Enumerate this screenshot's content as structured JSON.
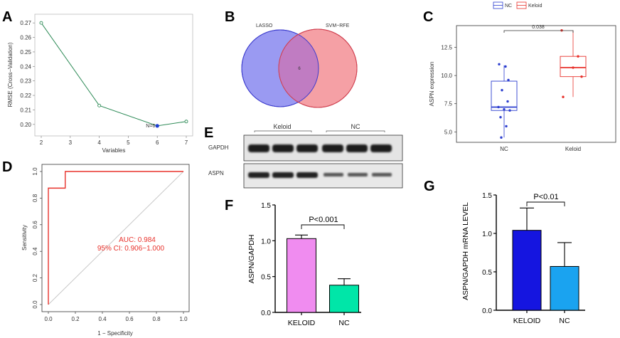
{
  "panels": [
    {
      "id": "A",
      "letter": "A"
    },
    {
      "id": "B",
      "letter": "B"
    },
    {
      "id": "C",
      "letter": "C"
    },
    {
      "id": "D",
      "letter": "D"
    },
    {
      "id": "E",
      "letter": "E"
    },
    {
      "id": "F",
      "letter": "F"
    },
    {
      "id": "G",
      "letter": "G"
    }
  ],
  "panel_a": {
    "xlabel": "Variables",
    "ylabel": "RMSE (Cross−Validation)",
    "annotation": "N=6",
    "colors": {
      "line": "#2e8b57",
      "highlight": "#1f3fd1",
      "annotation": "#e8322c"
    }
  },
  "panel_b": {
    "labels": {
      "left": "LASSO",
      "right": "SVM−RFE",
      "center": "6"
    },
    "colors": {
      "left": "#9a9af2",
      "right": "#f5a0a5",
      "overlap": "#c07cc2"
    }
  },
  "panel_c": {
    "legend": {
      "nc": "NC",
      "keloid": "Keloid"
    },
    "ylabel": "ASPN expression",
    "pvalue": "0.038",
    "colors": {
      "nc": "#2c3ecf",
      "keloid": "#e8322c"
    }
  },
  "panel_d": {
    "xlabel": "1 − Specificity",
    "ylabel": "Sensitivity",
    "auc_text": "AUC: 0.984",
    "ci_text": "95% CI: 0.906−1.000",
    "colors": {
      "curve": "#e8322c",
      "diagonal": "#c8c8c8"
    }
  },
  "panel_e": {
    "groups": [
      {
        "label": "Keloid"
      },
      {
        "label": "NC"
      }
    ],
    "rows": [
      {
        "label": "GAPDH"
      },
      {
        "label": "ASPN"
      }
    ]
  },
  "panel_f": {
    "pvalue": "P<0.001",
    "colors": {
      "keloid": "#f08cf0",
      "nc": "#00e6a8"
    }
  },
  "panel_g": {
    "pvalue": "P<0.01",
    "colors": {
      "keloid": "#1515e0",
      "nc": "#1aa3f0"
    }
  },
  "chart_data": [
    {
      "panel": "A",
      "type": "line",
      "x": [
        2,
        4,
        6,
        7
      ],
      "values": [
        0.27,
        0.213,
        0.199,
        0.202
      ],
      "title": "",
      "xlabel": "Variables",
      "ylabel": "RMSE (Cross−Validation)",
      "xlim": [
        2,
        7
      ],
      "ylim": [
        0.195,
        0.275
      ],
      "xticks": [
        2,
        3,
        4,
        5,
        6,
        7
      ],
      "yticks": [
        0.2,
        0.21,
        0.22,
        0.23,
        0.24,
        0.25,
        0.26,
        0.27
      ],
      "ytick_labels": [
        "0.20",
        "0.21",
        "0.22",
        "0.23",
        "0.24",
        "0.25",
        "0.26",
        "0.27"
      ],
      "highlight_x": 6
    },
    {
      "panel": "C",
      "type": "box",
      "categories": [
        "NC",
        "Keloid"
      ],
      "ylabel": "ASPN expression",
      "ylim": [
        4.2,
        14.3
      ],
      "yticks": [
        5.0,
        7.5,
        10.0,
        12.5
      ],
      "ytick_labels": [
        "5.0",
        "7.5",
        "10.0",
        "12.5"
      ],
      "series": [
        {
          "name": "NC",
          "min": 4.5,
          "q1": 6.9,
          "median": 7.2,
          "q3": 9.5,
          "max": 10.9,
          "points": [
            11.0,
            10.8,
            9.6,
            8.7,
            7.7,
            7.2,
            7.0,
            6.9,
            6.3,
            5.5,
            4.5
          ]
        },
        {
          "name": "Keloid",
          "min": 8.1,
          "q1": 9.9,
          "median": 10.7,
          "q3": 11.7,
          "max": 14.0,
          "points": [
            14.0,
            11.7,
            10.7,
            9.9,
            8.1
          ]
        }
      ]
    },
    {
      "panel": "D",
      "type": "line",
      "x": [
        0,
        0,
        0.125,
        0.125,
        1.0
      ],
      "values": [
        0,
        0.875,
        0.875,
        1.0,
        1.0
      ],
      "xlabel": "1 − Specificity",
      "ylabel": "Sensitivity",
      "xlim": [
        0,
        1
      ],
      "ylim": [
        0,
        1
      ],
      "xticks": [
        0.0,
        0.2,
        0.4,
        0.6,
        0.8,
        1.0
      ],
      "xtick_labels": [
        "0.0",
        "0.2",
        "0.4",
        "0.6",
        "0.8",
        "1.0"
      ],
      "yticks": [
        0.0,
        0.2,
        0.4,
        0.6,
        0.8,
        1.0
      ],
      "ytick_labels": [
        "0.0",
        "0.2",
        "0.4",
        "0.6",
        "0.8",
        "1.0"
      ]
    },
    {
      "panel": "F",
      "type": "bar",
      "categories": [
        "KELOID",
        "NC"
      ],
      "values": [
        1.03,
        0.38
      ],
      "errors": [
        0.05,
        0.09
      ],
      "ylabel": "ASPN/GAPDH",
      "ylim": [
        0,
        1.5
      ],
      "yticks": [
        0.0,
        0.5,
        1.0,
        1.5
      ],
      "ytick_labels": [
        "0.0",
        "0.5",
        "1.0",
        "1.5"
      ]
    },
    {
      "panel": "G",
      "type": "bar",
      "categories": [
        "KELOID",
        "NC"
      ],
      "values": [
        1.04,
        0.57
      ],
      "errors": [
        0.29,
        0.31
      ],
      "ylabel": "ASPN/GAPDH mRNA LEVEL",
      "ylim": [
        0,
        1.5
      ],
      "yticks": [
        0.0,
        0.5,
        1.0,
        1.5
      ],
      "ytick_labels": [
        "0.0",
        "0.5",
        "1.0",
        "1.5"
      ]
    }
  ]
}
